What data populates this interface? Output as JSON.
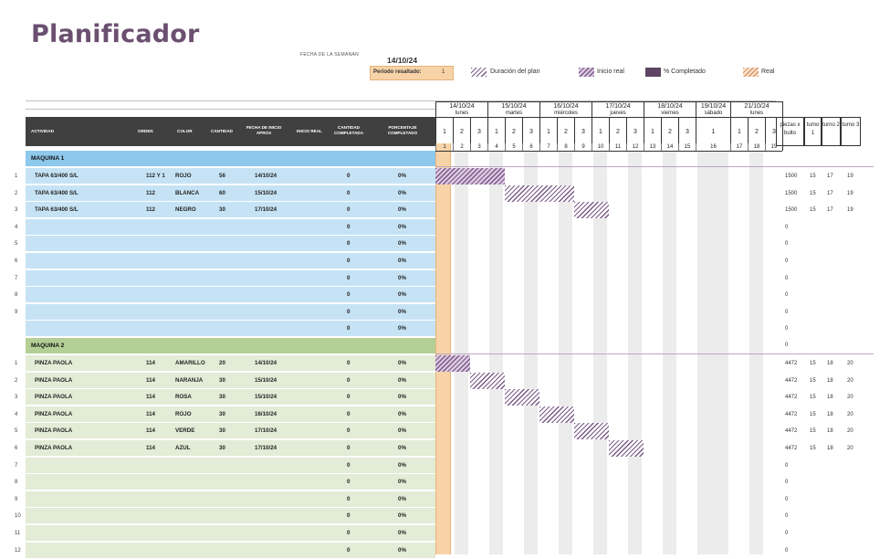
{
  "title": "Planificador",
  "week_label": "FECHA DE LA SEMANAN",
  "week_date": "14/10/24",
  "period_label": "Periodo resaltado:",
  "period_value": "1",
  "legend": [
    {
      "label": "Duración del plan",
      "style": "hatch-plan",
      "icon": "plan-duration-swatch"
    },
    {
      "label": "Inicio real",
      "style": "hatch-inicio",
      "icon": "actual-start-swatch"
    },
    {
      "label": "% Completado",
      "style": "solid-pct",
      "icon": "percent-complete-swatch"
    },
    {
      "label": "Real",
      "style": "hatch-real-legend",
      "icon": "actual-swatch"
    }
  ],
  "columns": {
    "actividad": "ACTIVIDAD",
    "orden": "ORDEN",
    "color": "COLOR",
    "cantidad": "CANTIDAD",
    "fecha_inicio": "FECHA DE INICIO APROX",
    "inicio_real": "INICIO REAL",
    "cantidad_completada": "CANTIDAD COMPLETADA",
    "porcentaje": "PORCENTAJE COMPLETADO"
  },
  "days": [
    {
      "date": "14/10/24",
      "name": "lunes",
      "shifts": [
        "1",
        "2",
        "3"
      ]
    },
    {
      "date": "15/10/24",
      "name": "martes",
      "shifts": [
        "1",
        "2",
        "3"
      ]
    },
    {
      "date": "16/10/24",
      "name": "miércoles",
      "shifts": [
        "1",
        "2",
        "3"
      ]
    },
    {
      "date": "17/10/24",
      "name": "jueves",
      "shifts": [
        "1",
        "2",
        "3"
      ]
    },
    {
      "date": "18/10/24",
      "name": "viernes",
      "shifts": [
        "1",
        "2",
        "3"
      ]
    },
    {
      "date": "19/10/24",
      "name": "sábado",
      "shifts": [
        "1"
      ]
    },
    {
      "date": "21/10/24",
      "name": "lunes",
      "shifts": [
        "1",
        "2",
        "3"
      ]
    }
  ],
  "period_indices": [
    "1",
    "2",
    "3",
    "4",
    "5",
    "6",
    "7",
    "8",
    "9",
    "10",
    "11",
    "12",
    "13",
    "14",
    "15",
    "16",
    "17",
    "18",
    "19"
  ],
  "right_headers": [
    "piezas x bulto",
    "turno 1",
    "turno 2",
    "turno 3"
  ],
  "colors": {
    "maquina1_header": "#8ec8ea",
    "maquina1_row": "#c6e3f5",
    "maquina2_header": "#b3cf95",
    "maquina2_row": "#e3ecd6",
    "header_dark": "#404040",
    "highlight": "#f8d3a8",
    "title": "#6b5070"
  },
  "sections": [
    {
      "name": "MAQUINA 1",
      "key": "m1",
      "rows": [
        {
          "num": "1",
          "actividad": "TAPA 63/400 S/L",
          "orden": "112 Y 1",
          "color": "ROJO",
          "cantidad": "56",
          "fecha": "14/10/24",
          "completada": "0",
          "pct": "0%",
          "side": [
            "1500",
            "15",
            "17",
            "19"
          ],
          "plan_start": 1,
          "plan_len": 4,
          "style": "hatch-inicio"
        },
        {
          "num": "2",
          "actividad": "TAPA 63/400 S/L",
          "orden": "112",
          "color": "BLANCA",
          "cantidad": "60",
          "fecha": "15/10/24",
          "completada": "0",
          "pct": "0%",
          "side": [
            "1500",
            "15",
            "17",
            "19"
          ],
          "plan_start": 5,
          "plan_len": 4,
          "style": "hatch-plan"
        },
        {
          "num": "3",
          "actividad": "TAPA 63/400 S/L",
          "orden": "112",
          "color": "NEGRO",
          "cantidad": "30",
          "fecha": "17/10/24",
          "completada": "0",
          "pct": "0%",
          "side": [
            "1500",
            "15",
            "17",
            "19"
          ],
          "plan_start": 9,
          "plan_len": 2,
          "style": "hatch-plan"
        },
        {
          "num": "4",
          "actividad": "",
          "orden": "",
          "color": "",
          "cantidad": "",
          "fecha": "",
          "completada": "0",
          "pct": "0%",
          "side": [
            "0",
            "",
            "",
            ""
          ]
        },
        {
          "num": "5",
          "actividad": "",
          "orden": "",
          "color": "",
          "cantidad": "",
          "fecha": "",
          "completada": "0",
          "pct": "0%",
          "side": [
            "0",
            "",
            "",
            ""
          ]
        },
        {
          "num": "6",
          "actividad": "",
          "orden": "",
          "color": "",
          "cantidad": "",
          "fecha": "",
          "completada": "0",
          "pct": "0%",
          "side": [
            "0",
            "",
            "",
            ""
          ]
        },
        {
          "num": "7",
          "actividad": "",
          "orden": "",
          "color": "",
          "cantidad": "",
          "fecha": "",
          "completada": "0",
          "pct": "0%",
          "side": [
            "0",
            "",
            "",
            ""
          ]
        },
        {
          "num": "8",
          "actividad": "",
          "orden": "",
          "color": "",
          "cantidad": "",
          "fecha": "",
          "completada": "0",
          "pct": "0%",
          "side": [
            "0",
            "",
            "",
            ""
          ]
        },
        {
          "num": "9",
          "actividad": "",
          "orden": "",
          "color": "",
          "cantidad": "",
          "fecha": "",
          "completada": "0",
          "pct": "0%",
          "side": [
            "0",
            "",
            "",
            ""
          ]
        },
        {
          "num": "",
          "actividad": "",
          "orden": "",
          "color": "",
          "cantidad": "",
          "fecha": "",
          "completada": "0",
          "pct": "0%",
          "side": [
            "0",
            "",
            "",
            ""
          ]
        }
      ]
    },
    {
      "name": "MAQUINA 2",
      "key": "m2",
      "section_side": "0",
      "rows": [
        {
          "num": "1",
          "actividad": "PINZA PAOLA",
          "orden": "114",
          "color": "AMARILLO",
          "cantidad": "20",
          "fecha": "14/10/24",
          "completada": "0",
          "pct": "0%",
          "side": [
            "4472",
            "15",
            "18",
            "20"
          ],
          "plan_start": 1,
          "plan_len": 2,
          "style": "hatch-inicio"
        },
        {
          "num": "2",
          "actividad": "PINZA PAOLA",
          "orden": "114",
          "color": "NARANJA",
          "cantidad": "30",
          "fecha": "15/10/24",
          "completada": "0",
          "pct": "0%",
          "side": [
            "4472",
            "15",
            "18",
            "20"
          ],
          "plan_start": 3,
          "plan_len": 2,
          "style": "hatch-plan"
        },
        {
          "num": "3",
          "actividad": "PINZA PAOLA",
          "orden": "114",
          "color": "ROSA",
          "cantidad": "30",
          "fecha": "15/10/24",
          "completada": "0",
          "pct": "0%",
          "side": [
            "4472",
            "15",
            "18",
            "20"
          ],
          "plan_start": 5,
          "plan_len": 2,
          "style": "hatch-plan"
        },
        {
          "num": "4",
          "actividad": "PINZA PAOLA",
          "orden": "114",
          "color": "ROJO",
          "cantidad": "30",
          "fecha": "16/10/24",
          "completada": "0",
          "pct": "0%",
          "side": [
            "4472",
            "15",
            "18",
            "20"
          ],
          "plan_start": 7,
          "plan_len": 2,
          "style": "hatch-plan"
        },
        {
          "num": "5",
          "actividad": "PINZA PAOLA",
          "orden": "114",
          "color": "VERDE",
          "cantidad": "30",
          "fecha": "17/10/24",
          "completada": "0",
          "pct": "0%",
          "side": [
            "4472",
            "15",
            "18",
            "20"
          ],
          "plan_start": 9,
          "plan_len": 2,
          "style": "hatch-plan"
        },
        {
          "num": "6",
          "actividad": "PINZA PAOLA",
          "orden": "114",
          "color": "AZUL",
          "cantidad": "30",
          "fecha": "17/10/24",
          "completada": "0",
          "pct": "0%",
          "side": [
            "4472",
            "15",
            "18",
            "20"
          ],
          "plan_start": 11,
          "plan_len": 2,
          "style": "hatch-plan"
        },
        {
          "num": "7",
          "actividad": "",
          "orden": "",
          "color": "",
          "cantidad": "",
          "fecha": "",
          "completada": "0",
          "pct": "0%",
          "side": [
            "0",
            "",
            "",
            ""
          ]
        },
        {
          "num": "8",
          "actividad": "",
          "orden": "",
          "color": "",
          "cantidad": "",
          "fecha": "",
          "completada": "0",
          "pct": "0%",
          "side": [
            "0",
            "",
            "",
            ""
          ]
        },
        {
          "num": "9",
          "actividad": "",
          "orden": "",
          "color": "",
          "cantidad": "",
          "fecha": "",
          "completada": "0",
          "pct": "0%",
          "side": [
            "0",
            "",
            "",
            ""
          ]
        },
        {
          "num": "10",
          "actividad": "",
          "orden": "",
          "color": "",
          "cantidad": "",
          "fecha": "",
          "completada": "0",
          "pct": "0%",
          "side": [
            "0",
            "",
            "",
            ""
          ]
        },
        {
          "num": "11",
          "actividad": "",
          "orden": "",
          "color": "",
          "cantidad": "",
          "fecha": "",
          "completada": "0",
          "pct": "0%",
          "side": [
            "0",
            "",
            "",
            ""
          ]
        },
        {
          "num": "12",
          "actividad": "",
          "orden": "",
          "color": "",
          "cantidad": "",
          "fecha": "",
          "completada": "0",
          "pct": "0%",
          "side": [
            "0",
            "",
            "",
            ""
          ]
        }
      ]
    }
  ]
}
